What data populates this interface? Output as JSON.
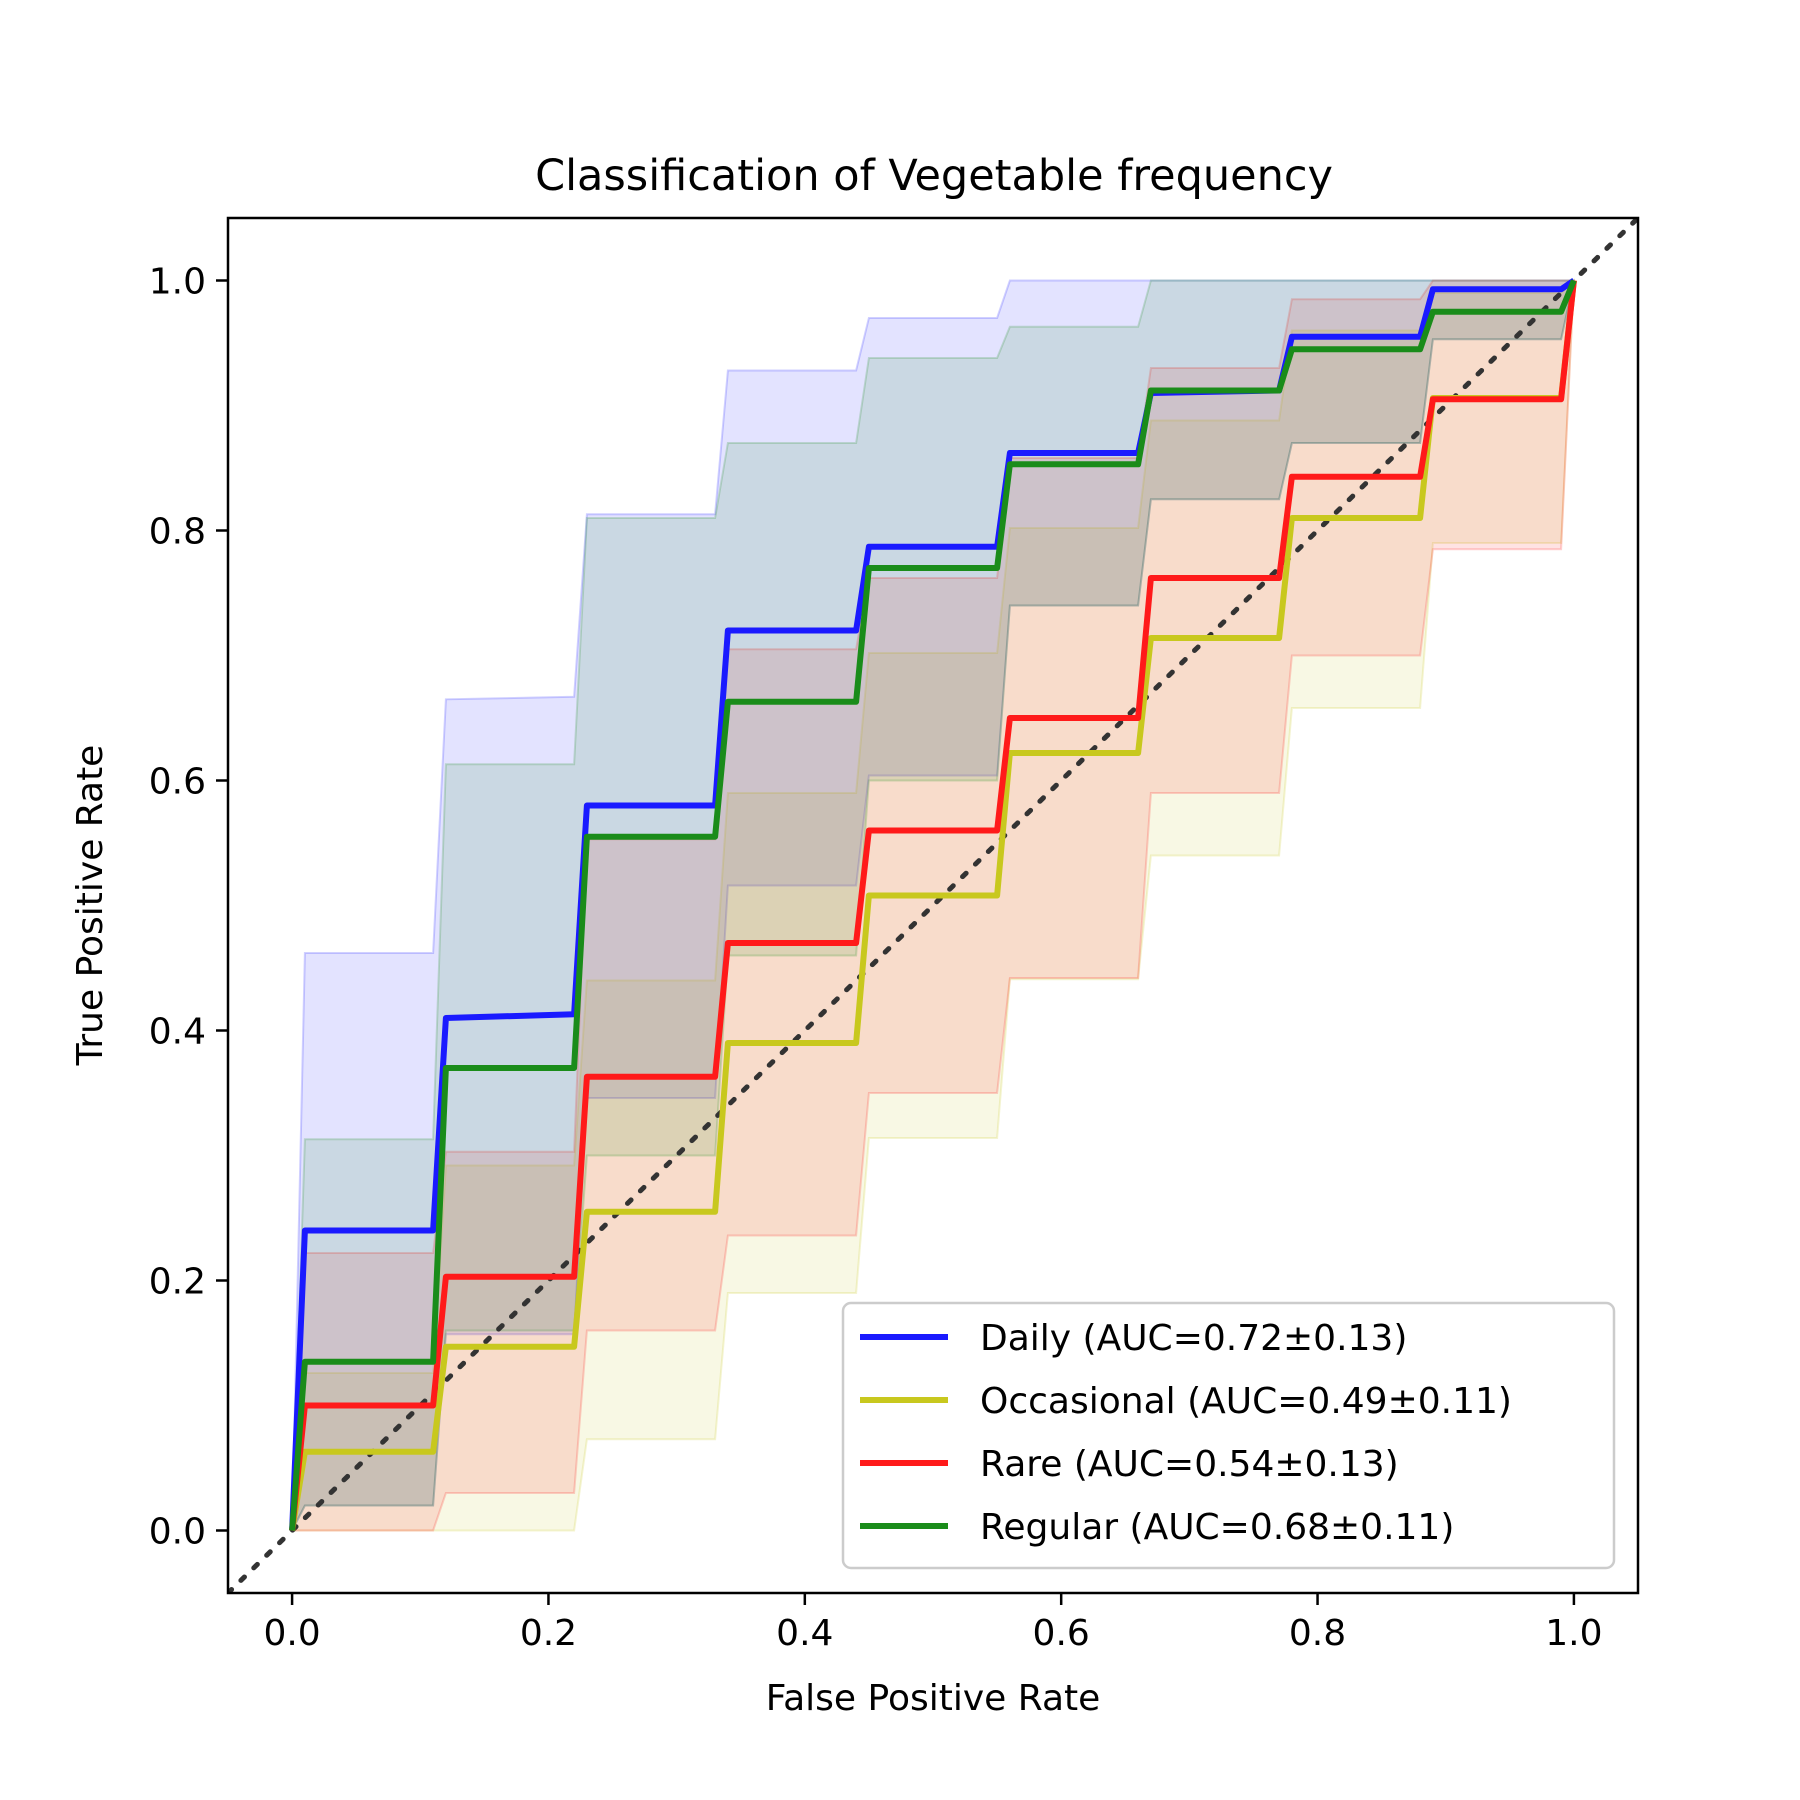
{
  "chart_data": {
    "type": "line",
    "title": "Classification of Vegetable frequency",
    "xlabel": "False Positive Rate",
    "ylabel": "True Positive Rate",
    "xlim": [
      -0.05,
      1.05
    ],
    "ylim": [
      -0.05,
      1.05
    ],
    "xticks": [
      "0.0",
      "0.2",
      "0.4",
      "0.6",
      "0.8",
      "1.0"
    ],
    "yticks": [
      "0.0",
      "0.2",
      "0.4",
      "0.6",
      "0.8",
      "1.0"
    ],
    "grid": false,
    "legend_position": "bottom-right",
    "diagonal": {
      "color": "#333333",
      "style": "dotted",
      "x": [
        -0.05,
        1.05
      ],
      "y": [
        -0.05,
        1.05
      ]
    },
    "series": [
      {
        "name": "Daily (AUC=0.72±0.13)",
        "color": "#1a1aff",
        "x": [
          0,
          0.01,
          0.11,
          0.12,
          0.22,
          0.23,
          0.33,
          0.34,
          0.44,
          0.45,
          0.55,
          0.56,
          0.66,
          0.67,
          0.77,
          0.78,
          0.88,
          0.89,
          0.99,
          1.0
        ],
        "y": [
          0,
          0.24,
          0.24,
          0.41,
          0.413,
          0.58,
          0.58,
          0.72,
          0.72,
          0.787,
          0.787,
          0.862,
          0.862,
          0.91,
          0.912,
          0.955,
          0.955,
          0.993,
          0.993,
          1.0
        ],
        "lower": [
          0,
          0.02,
          0.02,
          0.157,
          0.157,
          0.346,
          0.346,
          0.516,
          0.516,
          0.604,
          0.604,
          0.74,
          0.74,
          0.825,
          0.825,
          0.87,
          0.87,
          0.953,
          0.953,
          1.0
        ],
        "upper": [
          0,
          0.462,
          0.462,
          0.665,
          0.667,
          0.813,
          0.813,
          0.928,
          0.928,
          0.97,
          0.97,
          1.0,
          1.0,
          1.0,
          1.0,
          1.0,
          1.0,
          1.0,
          1.0,
          1.0
        ]
      },
      {
        "name": "Occasional (AUC=0.49±0.11)",
        "color": "#c8c81e",
        "x": [
          0,
          0.01,
          0.11,
          0.12,
          0.22,
          0.23,
          0.33,
          0.34,
          0.44,
          0.45,
          0.55,
          0.56,
          0.66,
          0.67,
          0.77,
          0.78,
          0.88,
          0.89,
          0.99,
          1.0
        ],
        "y": [
          0,
          0.063,
          0.063,
          0.147,
          0.147,
          0.255,
          0.255,
          0.39,
          0.39,
          0.508,
          0.508,
          0.622,
          0.622,
          0.714,
          0.714,
          0.81,
          0.81,
          0.906,
          0.906,
          1.0
        ],
        "lower": [
          0,
          0.0,
          0.0,
          0.0,
          0.0,
          0.073,
          0.073,
          0.19,
          0.19,
          0.314,
          0.314,
          0.441,
          0.441,
          0.54,
          0.54,
          0.658,
          0.658,
          0.79,
          0.79,
          1.0
        ],
        "upper": [
          0,
          0.126,
          0.126,
          0.292,
          0.292,
          0.44,
          0.44,
          0.59,
          0.59,
          0.702,
          0.702,
          0.802,
          0.802,
          0.888,
          0.888,
          0.96,
          0.96,
          0.99,
          0.99,
          1.0
        ]
      },
      {
        "name": "Rare (AUC=0.54±0.13)",
        "color": "#ff1a1a",
        "x": [
          0,
          0.01,
          0.11,
          0.12,
          0.22,
          0.23,
          0.33,
          0.34,
          0.44,
          0.45,
          0.55,
          0.56,
          0.66,
          0.67,
          0.77,
          0.78,
          0.88,
          0.89,
          0.99,
          1.0
        ],
        "y": [
          0,
          0.1,
          0.1,
          0.203,
          0.203,
          0.363,
          0.363,
          0.47,
          0.47,
          0.56,
          0.56,
          0.65,
          0.65,
          0.762,
          0.762,
          0.843,
          0.843,
          0.905,
          0.905,
          1.0
        ],
        "lower": [
          0,
          0.0,
          0.0,
          0.03,
          0.03,
          0.16,
          0.16,
          0.236,
          0.236,
          0.35,
          0.35,
          0.442,
          0.442,
          0.59,
          0.59,
          0.7,
          0.7,
          0.785,
          0.785,
          1.0
        ],
        "upper": [
          0,
          0.222,
          0.222,
          0.303,
          0.303,
          0.553,
          0.553,
          0.705,
          0.705,
          0.762,
          0.762,
          0.858,
          0.858,
          0.93,
          0.93,
          0.985,
          0.985,
          1.0,
          1.0,
          1.0
        ]
      },
      {
        "name": "Regular (AUC=0.68±0.11)",
        "color": "#1a8c1a",
        "x": [
          0,
          0.01,
          0.11,
          0.12,
          0.22,
          0.23,
          0.33,
          0.34,
          0.44,
          0.45,
          0.55,
          0.56,
          0.66,
          0.67,
          0.77,
          0.78,
          0.88,
          0.89,
          0.99,
          1.0
        ],
        "y": [
          0,
          0.135,
          0.135,
          0.37,
          0.37,
          0.555,
          0.555,
          0.663,
          0.663,
          0.77,
          0.77,
          0.853,
          0.853,
          0.912,
          0.912,
          0.945,
          0.945,
          0.975,
          0.975,
          1.0
        ],
        "lower": [
          0,
          0.02,
          0.02,
          0.16,
          0.16,
          0.3,
          0.3,
          0.46,
          0.46,
          0.6,
          0.6,
          0.74,
          0.74,
          0.825,
          0.825,
          0.87,
          0.87,
          0.953,
          0.953,
          1.0
        ],
        "upper": [
          0,
          0.313,
          0.313,
          0.613,
          0.613,
          0.81,
          0.81,
          0.87,
          0.87,
          0.938,
          0.938,
          0.963,
          0.963,
          1.0,
          1.0,
          1.0,
          1.0,
          1.0,
          1.0,
          1.0
        ]
      }
    ]
  }
}
